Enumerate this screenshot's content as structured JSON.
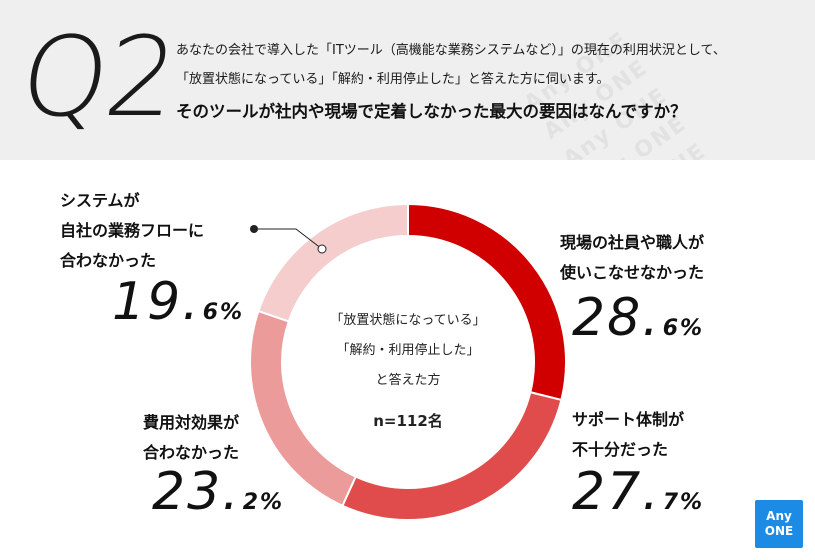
{
  "header": {
    "q_number": "Q2",
    "lines": [
      "あなたの会社で導入した「ITツール（高機能な業務システムなど）」の現在の利用状況として、",
      "「放置状態になっている」「解約・利用停止した」と答えた方に伺います。"
    ],
    "question": "そのツールが社内や現場で定着しなかった最大の要因はなんですか？",
    "watermark": "Any ONE"
  },
  "center": {
    "line1": "「放置状態になっている」",
    "line2": "「解約・利用停止した」",
    "line3": "と答えた方",
    "n": "n=112名"
  },
  "labels": {
    "s1": [
      "現場の社員や職人が",
      "使いこなせなかった"
    ],
    "s2": [
      "サポート体制が",
      "不十分だった"
    ],
    "s3": [
      "費用対効果が",
      "合わなかった"
    ],
    "s4": [
      "システムが",
      "自社の業務フローに",
      "合わなかった"
    ]
  },
  "percents": {
    "s1": {
      "big": "28.",
      "small": "6%"
    },
    "s2": {
      "big": "27.",
      "small": "7%"
    },
    "s3": {
      "big": "23.",
      "small": "2%"
    },
    "s4": {
      "big": "19.",
      "small": "6%"
    }
  },
  "logo": {
    "line1": "Any",
    "line2": "ONE"
  },
  "chart_data": {
    "type": "pie",
    "style": "donut",
    "categories": [
      "現場の社員や職人が使いこなせなかった",
      "サポート体制が不十分だった",
      "費用対効果が合わなかった",
      "システムが自社の業務フローに合わなかった"
    ],
    "values": [
      28.6,
      27.7,
      23.2,
      19.6
    ],
    "colors": [
      "#d10000",
      "#e04c4c",
      "#ec9b9b",
      "#f5cdcd"
    ]
  }
}
